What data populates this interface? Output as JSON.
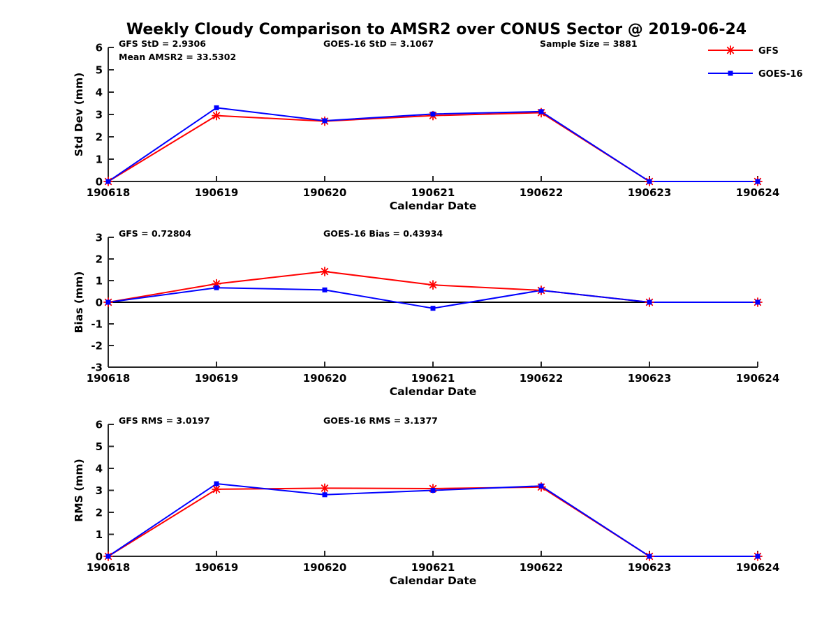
{
  "title": "Weekly Cloudy Comparison to AMSR2 over CONUS Sector @ 2019-06-24",
  "colors": {
    "gfs": "#ff0000",
    "goes16": "#0000ff",
    "axis": "#262626",
    "zero_line": "#000000",
    "text": "#000000"
  },
  "legend": {
    "position": "top-right",
    "items": [
      {
        "label": "GFS",
        "color": "#ff0000",
        "marker": "asterisk"
      },
      {
        "label": "GOES-16",
        "color": "#0000ff",
        "marker": "square"
      }
    ]
  },
  "chart_data": [
    {
      "type": "line",
      "name": "std-dev",
      "ylabel": "Std Dev (mm)",
      "xlabel": "Calendar Date",
      "categories": [
        "190618",
        "190619",
        "190620",
        "190621",
        "190622",
        "190623",
        "190624"
      ],
      "ylim": [
        0,
        6
      ],
      "yticks": [
        0,
        1,
        2,
        3,
        4,
        5,
        6
      ],
      "grid": false,
      "zero_line": false,
      "annotations": [
        {
          "text": "GFS StD = 2.9306",
          "slot": 0,
          "row": 0
        },
        {
          "text": "Mean AMSR2 = 33.5302",
          "slot": 0,
          "row": 1
        },
        {
          "text": "GOES-16 StD = 3.1067",
          "slot": 1,
          "row": 0
        },
        {
          "text": "Sample Size = 3881",
          "slot": 2,
          "row": 0
        }
      ],
      "series": [
        {
          "name": "GFS",
          "marker": "asterisk",
          "color": "#ff0000",
          "values": [
            0,
            2.95,
            2.7,
            2.95,
            3.08,
            0,
            0
          ]
        },
        {
          "name": "GOES-16",
          "marker": "square",
          "color": "#0000ff",
          "values": [
            0,
            3.3,
            2.72,
            3.02,
            3.13,
            0,
            0
          ]
        }
      ]
    },
    {
      "type": "line",
      "name": "bias",
      "ylabel": "Bias (mm)",
      "xlabel": "Calendar Date",
      "categories": [
        "190618",
        "190619",
        "190620",
        "190621",
        "190622",
        "190623",
        "190624"
      ],
      "ylim": [
        -3,
        3
      ],
      "yticks": [
        -3,
        -2,
        -1,
        0,
        1,
        2,
        3
      ],
      "grid": false,
      "zero_line": true,
      "annotations": [
        {
          "text": "GFS = 0.72804",
          "slot": 0,
          "row": 0
        },
        {
          "text": "GOES-16 Bias  = 0.43934",
          "slot": 1,
          "row": 0
        }
      ],
      "series": [
        {
          "name": "GFS",
          "marker": "asterisk",
          "color": "#ff0000",
          "values": [
            0,
            0.85,
            1.42,
            0.8,
            0.55,
            0,
            0
          ]
        },
        {
          "name": "GOES-16",
          "marker": "square",
          "color": "#0000ff",
          "values": [
            0,
            0.67,
            0.57,
            -0.28,
            0.55,
            0,
            0
          ]
        }
      ]
    },
    {
      "type": "line",
      "name": "rms",
      "ylabel": "RMS (mm)",
      "xlabel": "Calendar Date",
      "categories": [
        "190618",
        "190619",
        "190620",
        "190621",
        "190622",
        "190623",
        "190624"
      ],
      "ylim": [
        0,
        6
      ],
      "yticks": [
        0,
        1,
        2,
        3,
        4,
        5,
        6
      ],
      "grid": false,
      "zero_line": false,
      "annotations": [
        {
          "text": "GFS RMS = 3.0197",
          "slot": 0,
          "row": 0
        },
        {
          "text": "GOES-16 RMS = 3.1377",
          "slot": 1,
          "row": 0
        }
      ],
      "series": [
        {
          "name": "GFS",
          "marker": "asterisk",
          "color": "#ff0000",
          "values": [
            0,
            3.05,
            3.1,
            3.08,
            3.15,
            0,
            0
          ]
        },
        {
          "name": "GOES-16",
          "marker": "square",
          "color": "#0000ff",
          "values": [
            0,
            3.3,
            2.8,
            3.0,
            3.2,
            0,
            0
          ]
        }
      ]
    }
  ]
}
